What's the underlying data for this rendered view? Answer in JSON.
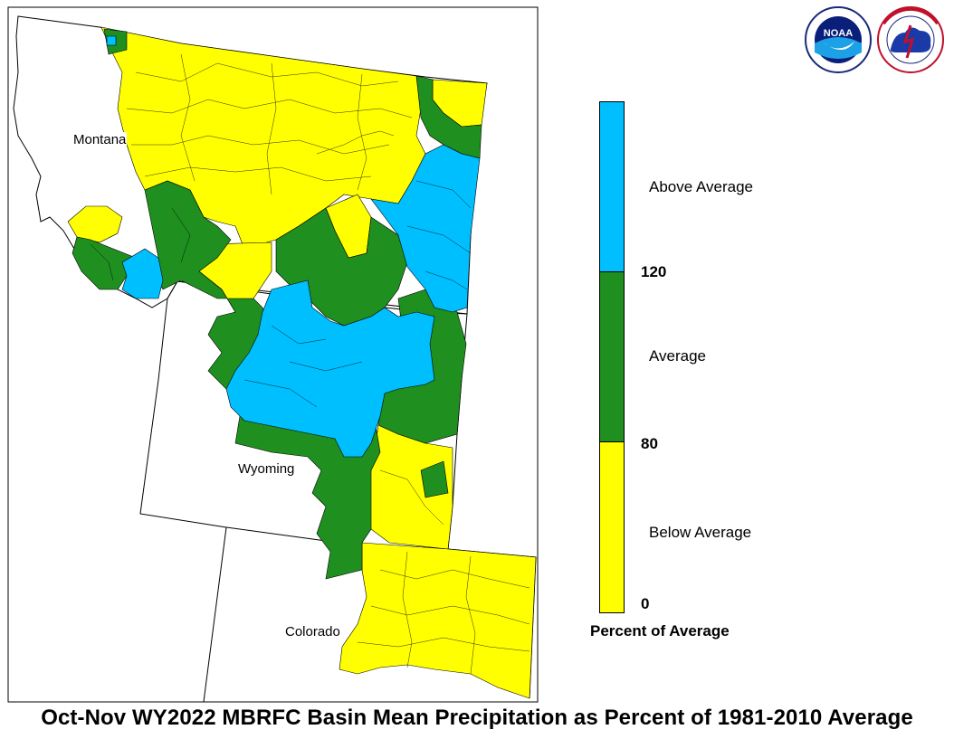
{
  "title": "Oct-Nov WY2022 MBRFC Basin Mean Precipitation as Percent of 1981-2010 Average",
  "states": {
    "montana": "Montana",
    "wyoming": "Wyoming",
    "colorado": "Colorado"
  },
  "legend": {
    "title": "Percent of Average",
    "categories": [
      {
        "label": "Above Average",
        "color": "#00bfff"
      },
      {
        "label": "Average",
        "color": "#1f8f1f"
      },
      {
        "label": "Below Average",
        "color": "#ffff00"
      }
    ],
    "ticks": [
      "120",
      "80",
      "0"
    ]
  },
  "logos": {
    "noaa": {
      "name": "noaa-logo",
      "text": "NOAA",
      "ring_text": "NATIONAL OCEANIC AND ATMOSPHERIC ADMINISTRATION · U.S. DEPARTMENT OF COMMERCE"
    },
    "nws": {
      "name": "nws-logo",
      "ring_text": "NATIONAL WEATHER SERVICE"
    }
  },
  "colors": {
    "above": "#00bfff",
    "average": "#1f8f1f",
    "below": "#ffff00",
    "border": "#000000"
  }
}
